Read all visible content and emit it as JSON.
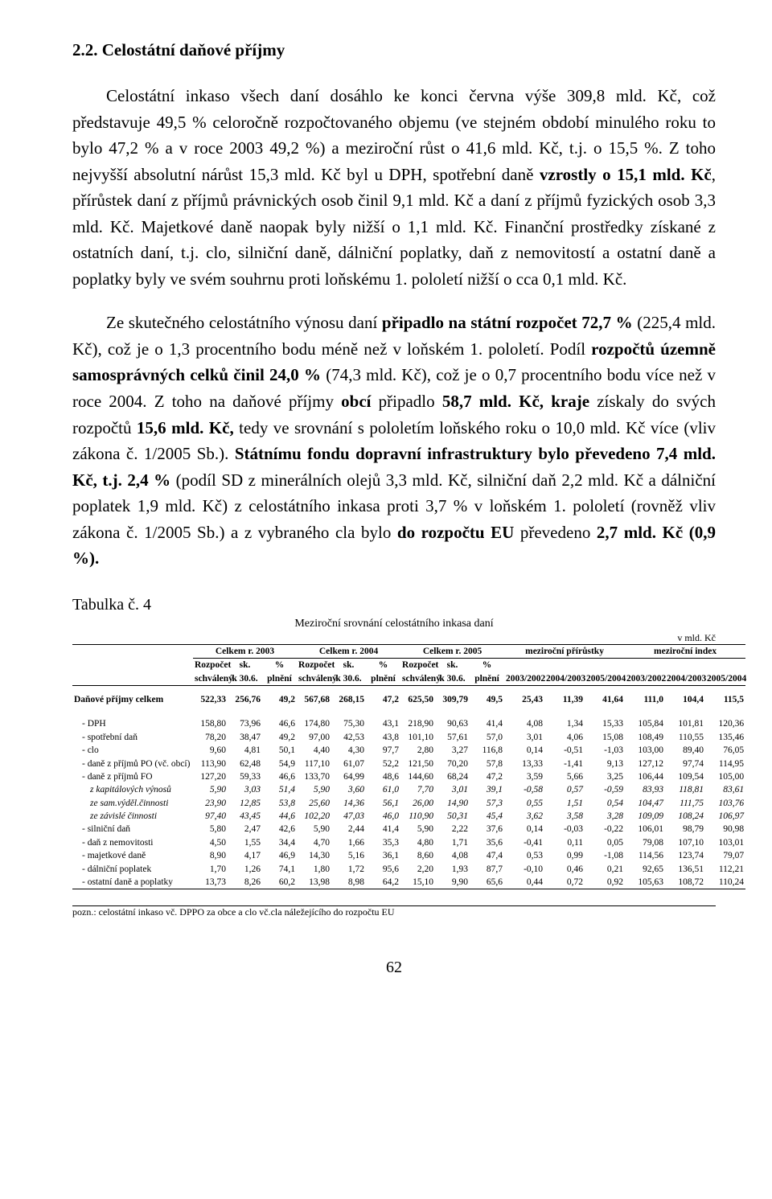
{
  "section_heading": "2.2. Celostátní daňové příjmy",
  "para1_html": "Celostátní inkaso všech daní dosáhlo ke konci června výše 309,8 mld. Kč, což představuje 49,5 % celoročně rozpočtovaného objemu (ve stejném období minulého roku to bylo 47,2 % a v roce 2003 49,2 %) a meziroční růst o 41,6 mld. Kč, t.j. o 15,5 %. Z toho nejvyšší absolutní nárůst 15,3 mld. Kč byl u DPH, spotřební daně <b>vzrostly o 15,1 mld. Kč</b>, přírůstek daní z příjmů právnických osob činil 9,1 mld. Kč a daní z příjmů fyzických osob 3,3 mld. Kč. Majetkové daně naopak byly nižší o 1,1 mld. Kč. Finanční prostředky získané z ostatních daní, t.j. clo, silniční daně, dálniční poplatky, daň z nemovitostí a ostatní daně a poplatky byly ve svém souhrnu proti loňskému 1. pololetí nižší o cca 0,1 mld. Kč.",
  "para2_html": "Ze skutečného celostátního výnosu daní <b>připadlo na státní rozpočet 72,7 %</b> (225,4 mld. Kč), což je o 1,3 procentního bodu méně než v loňském 1. pololetí. Podíl <b>rozpočtů územně samosprávných celků činil 24,0 %</b> (74,3 mld. Kč), což je o 0,7 procentního bodu více než v roce 2004. Z toho na daňové příjmy <b>obcí</b> připadlo <b>58,7 mld. Kč, kraje</b> získaly do svých rozpočtů <b>15,6 mld. Kč,</b> tedy ve srovnání s pololetím loňského roku o 10,0 mld. Kč více (vliv zákona č. 1/2005 Sb.). <b>Státnímu fondu dopravní infrastruktury bylo převedeno 7,4 mld. Kč, t.j. 2,4 %</b> (podíl SD z minerálních olejů 3,3 mld. Kč, silniční daň 2,2 mld. Kč a dálniční poplatek 1,9 mld. Kč) z celostátního inkasa proti 3,7 % v loňském 1. pololetí (rovněž vliv zákona č. 1/2005 Sb.) a z vybraného cla bylo <b>do rozpočtu EU</b> převedeno <b>2,7 mld. Kč (0,9 %).</b>",
  "table_label": "Tabulka č. 4",
  "table_title": "Meziroční srovnání celostátního inkasa daní",
  "units": "v mld. Kč",
  "header": {
    "group1": "Celkem r. 2003",
    "group2": "Celkem r. 2004",
    "group3": "Celkem r. 2005",
    "group4": "meziroční přírůstky",
    "group5": "meziroční index",
    "c1": "Rozpočet",
    "c2": "sk.",
    "c3": "%",
    "c1b": "schválený",
    "c2b": "k 30.6.",
    "c3b": "plnění",
    "y1": "2003/2002",
    "y2": "2004/2003",
    "y3": "2005/2004"
  },
  "rows": [
    {
      "label": "Daňové příjmy celkem",
      "cls": "bold",
      "v": [
        "522,33",
        "256,76",
        "49,2",
        "567,68",
        "268,15",
        "47,2",
        "625,50",
        "309,79",
        "49,5",
        "25,43",
        "11,39",
        "41,64",
        "111,0",
        "104,4",
        "115,5"
      ]
    },
    {
      "label": "- DPH",
      "indent": 1,
      "v": [
        "158,80",
        "73,96",
        "46,6",
        "174,80",
        "75,30",
        "43,1",
        "218,90",
        "90,63",
        "41,4",
        "4,08",
        "1,34",
        "15,33",
        "105,84",
        "101,81",
        "120,36"
      ]
    },
    {
      "label": "- spotřební daň",
      "indent": 1,
      "v": [
        "78,20",
        "38,47",
        "49,2",
        "97,00",
        "42,53",
        "43,8",
        "101,10",
        "57,61",
        "57,0",
        "3,01",
        "4,06",
        "15,08",
        "108,49",
        "110,55",
        "135,46"
      ]
    },
    {
      "label": "- clo",
      "indent": 1,
      "v": [
        "9,60",
        "4,81",
        "50,1",
        "4,40",
        "4,30",
        "97,7",
        "2,80",
        "3,27",
        "116,8",
        "0,14",
        "-0,51",
        "-1,03",
        "103,00",
        "89,40",
        "76,05"
      ]
    },
    {
      "label": "- daně z příjmů PO (vč. obcí)",
      "indent": 1,
      "v": [
        "113,90",
        "62,48",
        "54,9",
        "117,10",
        "61,07",
        "52,2",
        "121,50",
        "70,20",
        "57,8",
        "13,33",
        "-1,41",
        "9,13",
        "127,12",
        "97,74",
        "114,95"
      ]
    },
    {
      "label": "- daně z příjmů FO",
      "indent": 1,
      "v": [
        "127,20",
        "59,33",
        "46,6",
        "133,70",
        "64,99",
        "48,6",
        "144,60",
        "68,24",
        "47,2",
        "3,59",
        "5,66",
        "3,25",
        "106,44",
        "109,54",
        "105,00"
      ]
    },
    {
      "label": "z kapitálových výnosů",
      "indent": 2,
      "cls": "italic",
      "v": [
        "5,90",
        "3,03",
        "51,4",
        "5,90",
        "3,60",
        "61,0",
        "7,70",
        "3,01",
        "39,1",
        "-0,58",
        "0,57",
        "-0,59",
        "83,93",
        "118,81",
        "83,61"
      ]
    },
    {
      "label": "ze sam.výděl.činnosti",
      "indent": 2,
      "cls": "italic",
      "v": [
        "23,90",
        "12,85",
        "53,8",
        "25,60",
        "14,36",
        "56,1",
        "26,00",
        "14,90",
        "57,3",
        "0,55",
        "1,51",
        "0,54",
        "104,47",
        "111,75",
        "103,76"
      ]
    },
    {
      "label": "ze závislé činnosti",
      "indent": 2,
      "cls": "italic",
      "v": [
        "97,40",
        "43,45",
        "44,6",
        "102,20",
        "47,03",
        "46,0",
        "110,90",
        "50,31",
        "45,4",
        "3,62",
        "3,58",
        "3,28",
        "109,09",
        "108,24",
        "106,97"
      ]
    },
    {
      "label": "- silniční daň",
      "indent": 1,
      "v": [
        "5,80",
        "2,47",
        "42,6",
        "5,90",
        "2,44",
        "41,4",
        "5,90",
        "2,22",
        "37,6",
        "0,14",
        "-0,03",
        "-0,22",
        "106,01",
        "98,79",
        "90,98"
      ]
    },
    {
      "label": "- daň z nemovitosti",
      "indent": 1,
      "v": [
        "4,50",
        "1,55",
        "34,4",
        "4,70",
        "1,66",
        "35,3",
        "4,80",
        "1,71",
        "35,6",
        "-0,41",
        "0,11",
        "0,05",
        "79,08",
        "107,10",
        "103,01"
      ]
    },
    {
      "label": "- majetkové daně",
      "indent": 1,
      "v": [
        "8,90",
        "4,17",
        "46,9",
        "14,30",
        "5,16",
        "36,1",
        "8,60",
        "4,08",
        "47,4",
        "0,53",
        "0,99",
        "-1,08",
        "114,56",
        "123,74",
        "79,07"
      ]
    },
    {
      "label": "- dálniční poplatek",
      "indent": 1,
      "v": [
        "1,70",
        "1,26",
        "74,1",
        "1,80",
        "1,72",
        "95,6",
        "2,20",
        "1,93",
        "87,7",
        "-0,10",
        "0,46",
        "0,21",
        "92,65",
        "136,51",
        "112,21"
      ]
    },
    {
      "label": "- ostatní daně a poplatky",
      "indent": 1,
      "v": [
        "13,73",
        "8,26",
        "60,2",
        "13,98",
        "8,98",
        "64,2",
        "15,10",
        "9,90",
        "65,6",
        "0,44",
        "0,72",
        "0,92",
        "105,63",
        "108,72",
        "110,24"
      ]
    }
  ],
  "footnote": "pozn.: celostátní inkaso vč. DPPO za obce a clo vč.cla náležejícího do rozpočtu EU",
  "page_number": "62"
}
